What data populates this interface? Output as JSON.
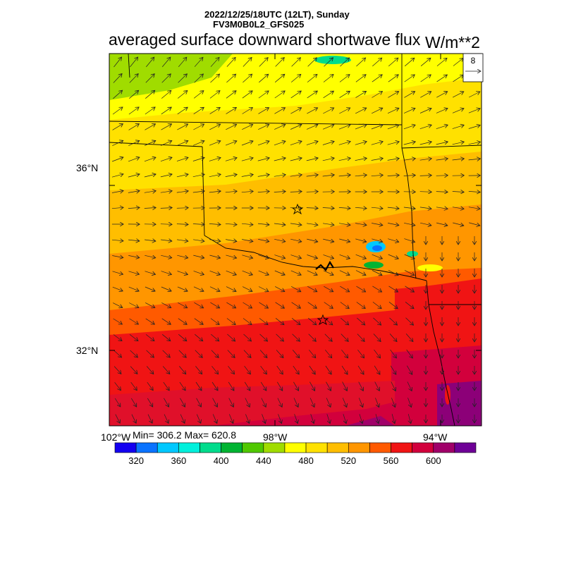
{
  "header": {
    "datetime": "2022/12/25/18UTC (12LT), Sunday",
    "model": "FV3M0B0L2_GFS025",
    "field": "averaged surface downward shortwave flux",
    "units": "W/m**2"
  },
  "map": {
    "lat_labels": [
      "36°N",
      "32°N"
    ],
    "lon_labels": [
      "102°W",
      "98°W",
      "94°W"
    ],
    "stats": "Min= 306.2 Max= 620.8",
    "vector_reference": "8",
    "station_markers": 2
  },
  "colorbar": {
    "labels": [
      "320",
      "360",
      "400",
      "440",
      "480",
      "520",
      "560",
      "600"
    ],
    "colors": [
      "#1400f0",
      "#0a73ff",
      "#00c8ff",
      "#00f0dc",
      "#00dc8c",
      "#00b432",
      "#50c800",
      "#a0dc00",
      "#ffff00",
      "#ffe100",
      "#ffbe00",
      "#ff9600",
      "#ff5a00",
      "#f01414",
      "#d2003c",
      "#a00069",
      "#6e0096"
    ]
  }
}
